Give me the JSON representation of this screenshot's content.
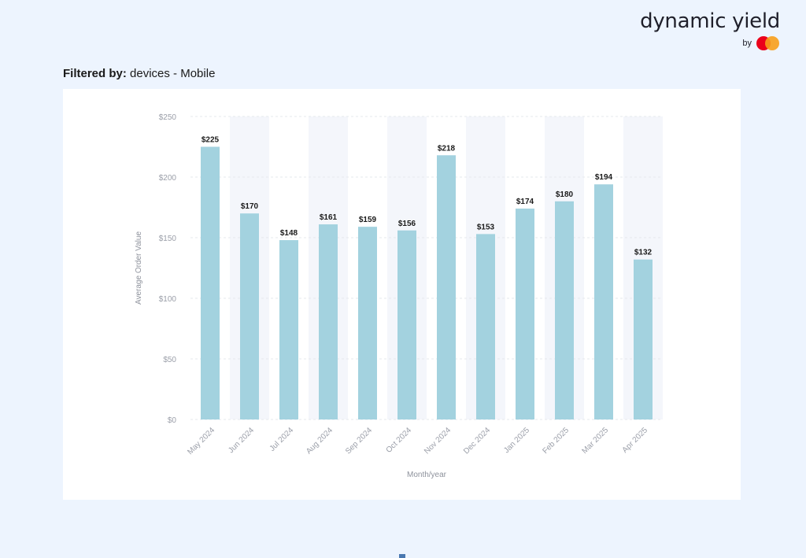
{
  "brand": {
    "name": "dynamic yield",
    "by": "by"
  },
  "filter": {
    "label": "Filtered by:",
    "value": "devices - Mobile"
  },
  "colors": {
    "bar": "#a3d2df",
    "band": "#f4f6fb",
    "grid": "#e6e8ee"
  },
  "chart_data": {
    "type": "bar",
    "title": "",
    "xlabel": "Month/year",
    "ylabel": "Average Order Value",
    "categories": [
      "May 2024",
      "Jun 2024",
      "Jul 2024",
      "Aug 2024",
      "Sep 2024",
      "Oct 2024",
      "Nov 2024",
      "Dec 2024",
      "Jan 2025",
      "Feb 2025",
      "Mar 2025",
      "Apr 2025"
    ],
    "values": [
      225,
      170,
      148,
      161,
      159,
      156,
      218,
      153,
      174,
      180,
      194,
      132
    ],
    "data_labels": [
      "$225",
      "$170",
      "$148",
      "$161",
      "$159",
      "$156",
      "$218",
      "$153",
      "$174",
      "$180",
      "$194",
      "$132"
    ],
    "yticks": [
      0,
      50,
      100,
      150,
      200,
      250
    ],
    "ytick_labels": [
      "$0",
      "$50",
      "$100",
      "$150",
      "$200",
      "$250"
    ],
    "ylim": [
      0,
      250
    ],
    "grid": true,
    "alternating_bands": true
  }
}
